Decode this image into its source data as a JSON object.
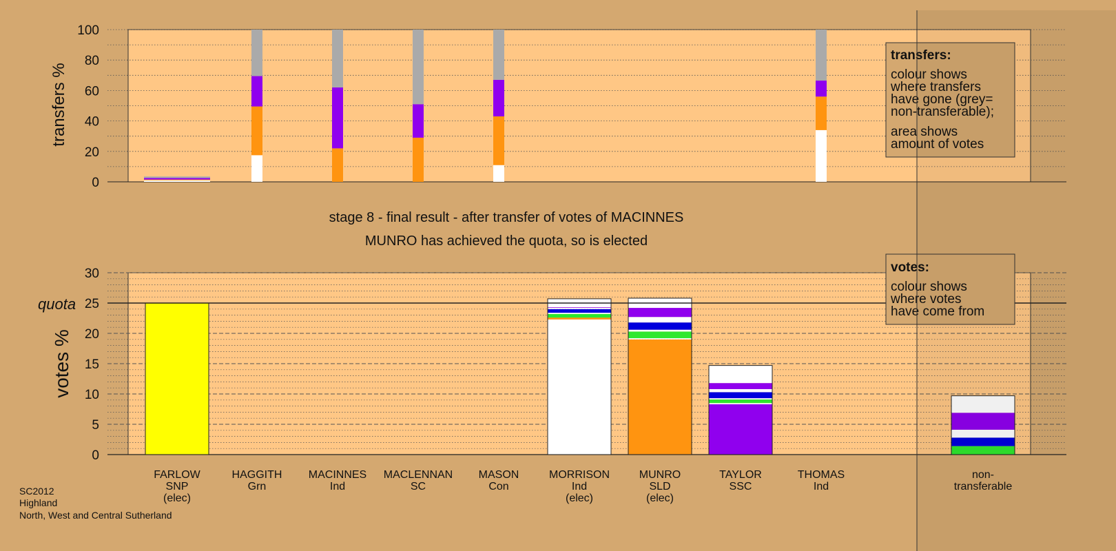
{
  "chart_data": [
    {
      "id": "transfers",
      "type": "bar",
      "stacked": true,
      "ylabel": "transfers %",
      "ylim": [
        0,
        100
      ],
      "yticks": [
        0,
        20,
        40,
        60,
        80,
        100
      ],
      "legend": {
        "title": "transfers:",
        "lines": [
          "colour shows",
          "where transfers",
          "have gone (grey=",
          "non-transferable);"
        ],
        "lines2": [
          "area shows",
          "amount of votes"
        ]
      },
      "categories": [
        "FARLOW",
        "HAGGITH",
        "MACINNES",
        "MACLENNAN",
        "MASON",
        "MORRISON",
        "MUNRO",
        "TAYLOR",
        "THOMAS"
      ],
      "bars": [
        {
          "category": "FARLOW",
          "segments": [
            {
              "color": "#ffffff",
              "value": 1
            },
            {
              "color": "#ff9410",
              "value": 0.5
            },
            {
              "color": "#9000ee",
              "value": 1
            },
            {
              "color": "#aaaaaa",
              "value": 1
            }
          ]
        },
        {
          "category": "HAGGITH",
          "segments": [
            {
              "color": "#ffffff",
              "value": 17.5
            },
            {
              "color": "#ff9410",
              "value": 32
            },
            {
              "color": "#9000ee",
              "value": 20
            },
            {
              "color": "#aaaaaa",
              "value": 30.5
            }
          ]
        },
        {
          "category": "MACINNES",
          "segments": [
            {
              "color": "#ff9410",
              "value": 22
            },
            {
              "color": "#9000ee",
              "value": 40
            },
            {
              "color": "#aaaaaa",
              "value": 38
            }
          ]
        },
        {
          "category": "MACLENNAN",
          "segments": [
            {
              "color": "#ff9410",
              "value": 29
            },
            {
              "color": "#9000ee",
              "value": 22
            },
            {
              "color": "#aaaaaa",
              "value": 49
            }
          ]
        },
        {
          "category": "MASON",
          "segments": [
            {
              "color": "#ffffff",
              "value": 11
            },
            {
              "color": "#ff9410",
              "value": 32
            },
            {
              "color": "#9000ee",
              "value": 24
            },
            {
              "color": "#aaaaaa",
              "value": 33
            }
          ]
        },
        {
          "category": "THOMAS",
          "segments": [
            {
              "color": "#ffffff",
              "value": 34
            },
            {
              "color": "#ff9410",
              "value": 22
            },
            {
              "color": "#9000ee",
              "value": 10.5
            },
            {
              "color": "#aaaaaa",
              "value": 33.5
            }
          ]
        }
      ]
    },
    {
      "id": "votes",
      "type": "bar",
      "stacked": true,
      "ylabel": "votes %",
      "ylim": [
        0,
        30
      ],
      "yticks": [
        0,
        5,
        10,
        15,
        20,
        25,
        30
      ],
      "quota": 25,
      "quota_label": "quota",
      "legend": {
        "title": "votes:",
        "lines": [
          "colour shows",
          "where votes",
          "have come from"
        ]
      },
      "categories": [
        {
          "name": "FARLOW",
          "party": "SNP",
          "status": "(elec)"
        },
        {
          "name": "HAGGITH",
          "party": "Grn",
          "status": ""
        },
        {
          "name": "MACINNES",
          "party": "Ind",
          "status": ""
        },
        {
          "name": "MACLENNAN",
          "party": "SC",
          "status": ""
        },
        {
          "name": "MASON",
          "party": "Con",
          "status": ""
        },
        {
          "name": "MORRISON",
          "party": "Ind",
          "status": "(elec)"
        },
        {
          "name": "MUNRO",
          "party": "SLD",
          "status": "(elec)"
        },
        {
          "name": "TAYLOR",
          "party": "SSC",
          "status": ""
        },
        {
          "name": "THOMAS",
          "party": "Ind",
          "status": ""
        },
        {
          "name": "non-",
          "party": "transferable",
          "status": ""
        }
      ],
      "bars": [
        {
          "category": "FARLOW",
          "segments": [
            {
              "color": "#ffff00",
              "value": 25.0
            }
          ]
        },
        {
          "category": "MORRISON",
          "segments": [
            {
              "color": "#ffffff",
              "value": 22.3
            },
            {
              "color": "#ff9410",
              "value": 0.3
            },
            {
              "color": "#2ee82e",
              "value": 0.6
            },
            {
              "color": "#ffffff",
              "value": 0.2
            },
            {
              "color": "#0000dd",
              "value": 0.6
            },
            {
              "color": "#ffffff",
              "value": 0.2
            },
            {
              "color": "#9000ee",
              "value": 0.1
            },
            {
              "color": "#ffffff",
              "value": 1.4
            }
          ]
        },
        {
          "category": "MUNRO",
          "segments": [
            {
              "color": "#ff9410",
              "value": 19.0
            },
            {
              "color": "#ffffff",
              "value": 0.2
            },
            {
              "color": "#2ee82e",
              "value": 1.1
            },
            {
              "color": "#ffffff",
              "value": 0.3
            },
            {
              "color": "#0000dd",
              "value": 1.2
            },
            {
              "color": "#ffffff",
              "value": 0.9
            },
            {
              "color": "#9000ee",
              "value": 1.5
            },
            {
              "color": "#ffffff",
              "value": 1.6
            }
          ]
        },
        {
          "category": "TAYLOR",
          "segments": [
            {
              "color": "#9000ee",
              "value": 8.3
            },
            {
              "color": "#ffffff",
              "value": 0.2
            },
            {
              "color": "#2ee82e",
              "value": 0.6
            },
            {
              "color": "#ffffff",
              "value": 0.2
            },
            {
              "color": "#0000dd",
              "value": 1.0
            },
            {
              "color": "#ffffff",
              "value": 0.5
            },
            {
              "color": "#9000ee",
              "value": 1.0
            },
            {
              "color": "#ffffff",
              "value": 2.9
            }
          ]
        },
        {
          "category": "non-transferable",
          "segments": [
            {
              "color": "#2ee82e",
              "value": 0.4
            },
            {
              "color": "#2ee82e",
              "value": 1.0
            },
            {
              "color": "#0000dd",
              "value": 1.4
            },
            {
              "color": "#ffffff",
              "value": 1.3
            },
            {
              "color": "#9000ee",
              "value": 2.8
            },
            {
              "color": "#ffffff",
              "value": 2.8
            }
          ]
        }
      ]
    }
  ],
  "caption": {
    "line1": "stage 8 - final result - after transfer of votes of MACINNES",
    "line2": "MUNRO has achieved the quota, so is elected"
  },
  "footer": {
    "line1": "SC2012",
    "line2": "Highland",
    "line3": "North, West and Central Sutherland"
  },
  "colors": {
    "background": "#d4a870",
    "plot_area": "#ffc785"
  }
}
